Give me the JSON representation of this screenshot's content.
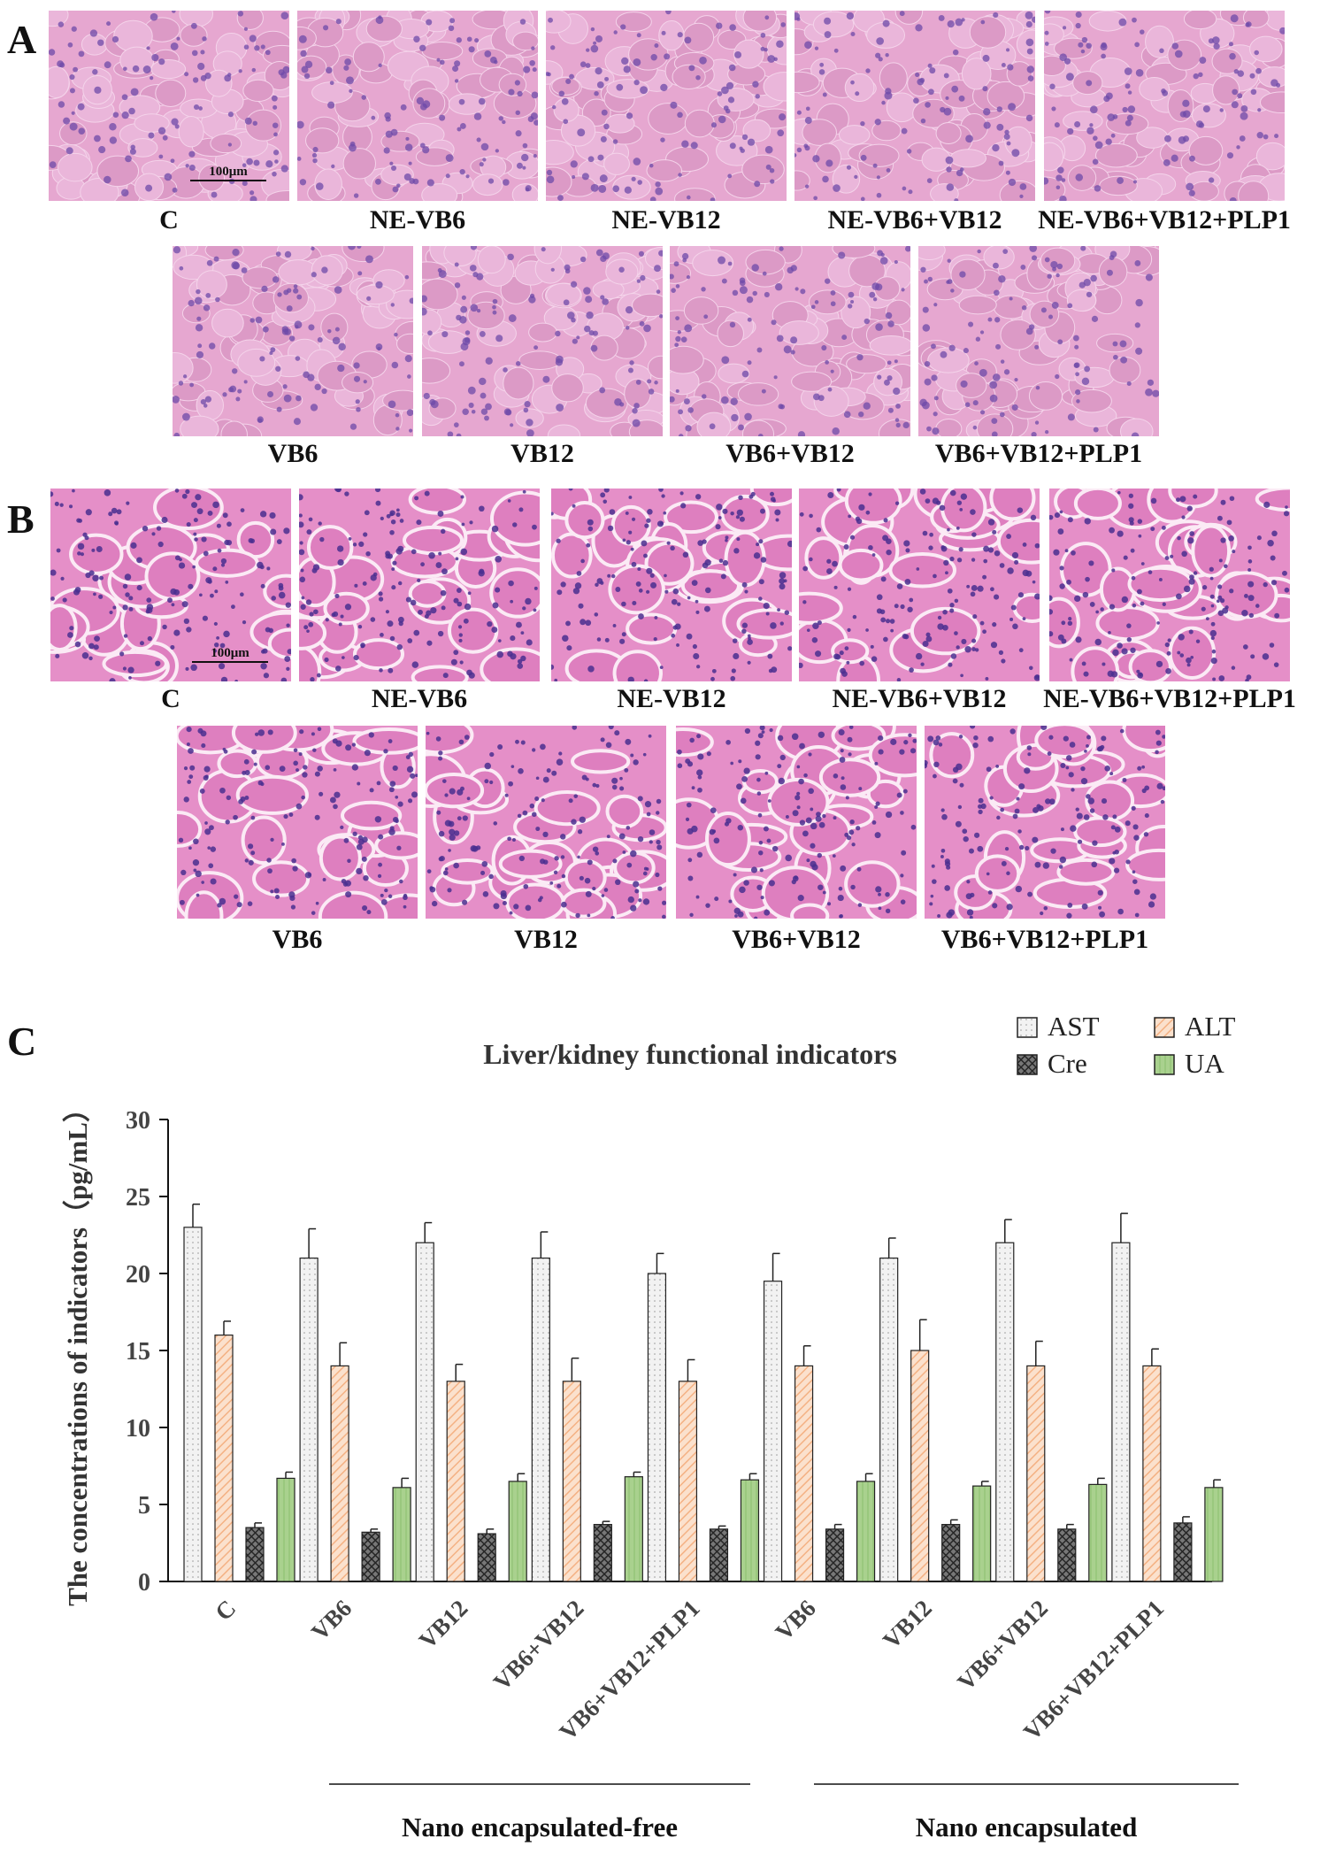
{
  "panels": {
    "a": {
      "label": "A",
      "row1": [
        "C",
        "NE-VB6",
        "NE-VB12",
        "NE-VB6+VB12",
        "NE-VB6+VB12+PLP1"
      ],
      "row2": [
        "VB6",
        "VB12",
        "VB6+VB12",
        "VB6+VB12+PLP1"
      ],
      "scale_label": "100μm"
    },
    "b": {
      "label": "B",
      "row1": [
        "C",
        "NE-VB6",
        "NE-VB12",
        "NE-VB6+VB12",
        "NE-VB6+VB12+PLP1"
      ],
      "row2": [
        "VB6",
        "VB12",
        "VB6+VB12",
        "VB6+VB12+PLP1"
      ],
      "scale_label": "100μm"
    },
    "c": {
      "label": "C"
    }
  },
  "colors": {
    "ast": "#f2f2f2",
    "alt": "#f4b183",
    "cre": "#262626",
    "ua": "#a9d18e",
    "tissue": "#e7a9d2",
    "nuclei": "#6e4aa8"
  },
  "chart_data": {
    "type": "bar",
    "title": "Liver/kidney functional indicators",
    "ylabel": "The concentrations of indicators（pg/mL）",
    "xlabel": "",
    "ylim": [
      0,
      30
    ],
    "yticks": [
      0,
      5,
      10,
      15,
      20,
      25,
      30
    ],
    "categories": [
      "C",
      "VB6",
      "VB12",
      "VB6+VB12",
      "VB6+VB12+PLP1",
      "VB6",
      "VB12",
      "VB6+VB12",
      "VB6+VB12+PLP1"
    ],
    "groups": [
      {
        "label": "Nano encapsulated-free",
        "categories": [
          1,
          2,
          3,
          4
        ]
      },
      {
        "label": "Nano encapsulated",
        "categories": [
          5,
          6,
          7,
          8
        ]
      }
    ],
    "series": [
      {
        "name": "AST",
        "values": [
          23,
          21,
          22,
          21,
          20,
          19.5,
          21,
          22,
          22
        ],
        "errors": [
          1.5,
          1.9,
          1.3,
          1.7,
          1.3,
          1.8,
          1.3,
          1.5,
          1.9
        ]
      },
      {
        "name": "ALT",
        "values": [
          16,
          14,
          13,
          13,
          13,
          14,
          15,
          14,
          14
        ],
        "errors": [
          0.9,
          1.5,
          1.1,
          1.5,
          1.4,
          1.3,
          2.0,
          1.6,
          1.1
        ]
      },
      {
        "name": "Cre",
        "values": [
          3.5,
          3.2,
          3.1,
          3.7,
          3.4,
          3.4,
          3.7,
          3.4,
          3.8
        ],
        "errors": [
          0.3,
          0.2,
          0.3,
          0.2,
          0.2,
          0.3,
          0.3,
          0.3,
          0.4
        ]
      },
      {
        "name": "UA",
        "values": [
          6.7,
          6.1,
          6.5,
          6.8,
          6.6,
          6.5,
          6.2,
          6.3,
          6.1
        ],
        "errors": [
          0.4,
          0.6,
          0.5,
          0.3,
          0.4,
          0.5,
          0.3,
          0.4,
          0.5
        ]
      }
    ],
    "legend_position": "top-right",
    "grid": false
  }
}
